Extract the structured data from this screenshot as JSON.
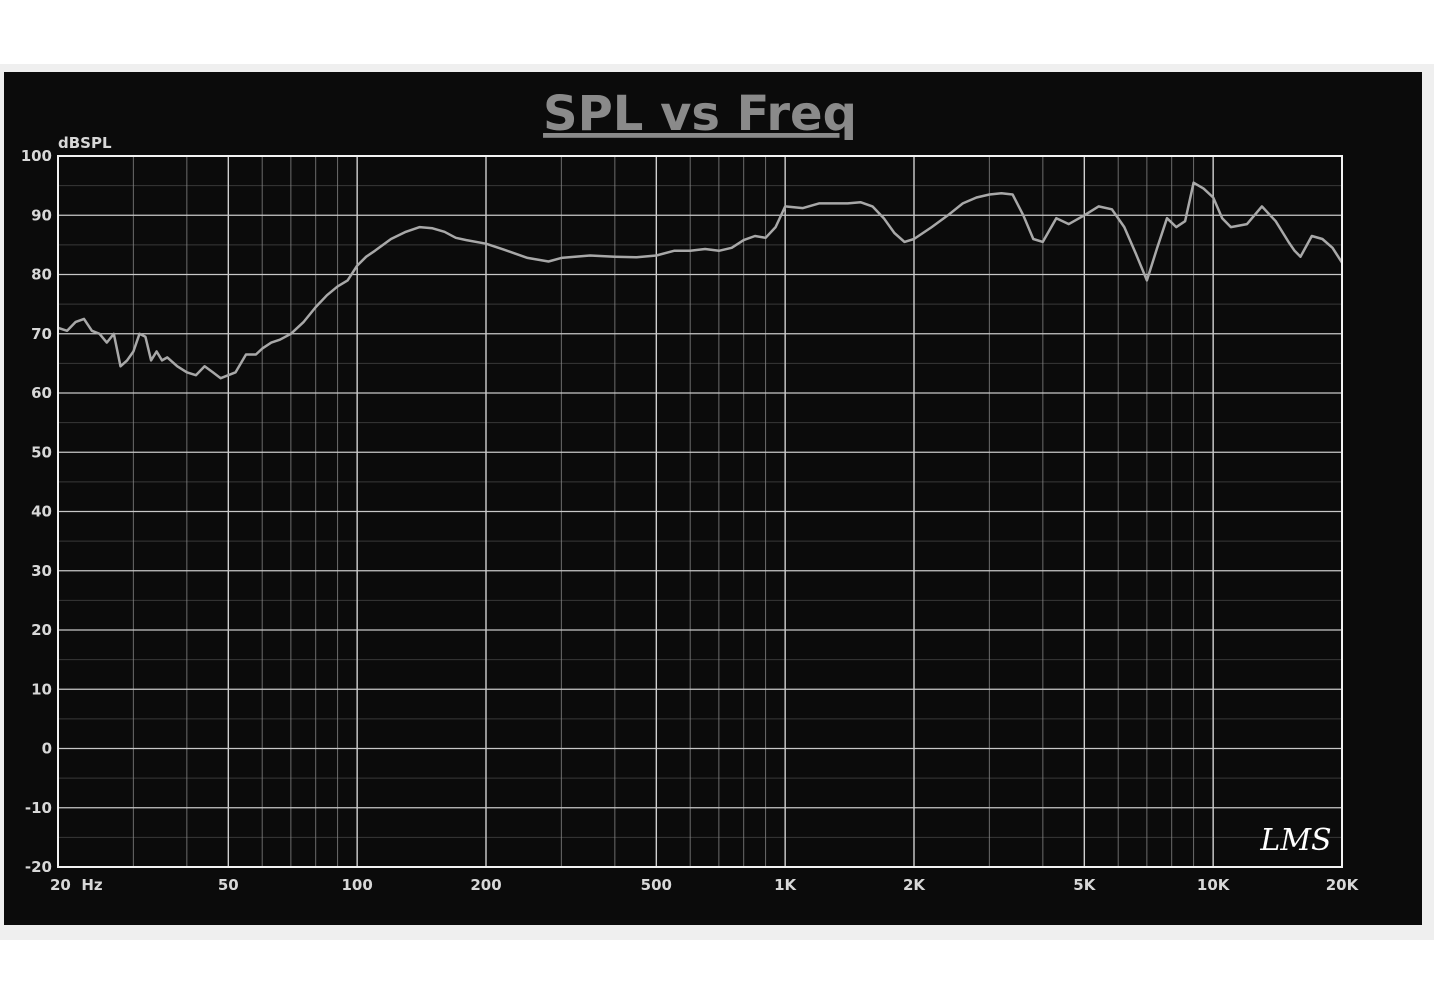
{
  "chart_data": {
    "type": "line",
    "title": "SPL vs Freq",
    "ylabel": "dBSPL",
    "xlabel": "",
    "x_scale": "log",
    "xlim": [
      20,
      20000
    ],
    "ylim": [
      -20,
      100
    ],
    "grid": true,
    "line_color": "#a8a8a8",
    "background_color": "#0b0b0b",
    "grid_color": "#8c8c8c",
    "y_ticks": [
      {
        "value": 100,
        "label": "100"
      },
      {
        "value": 90,
        "label": "90"
      },
      {
        "value": 80,
        "label": "80"
      },
      {
        "value": 70,
        "label": "70"
      },
      {
        "value": 60,
        "label": "60"
      },
      {
        "value": 50,
        "label": "50"
      },
      {
        "value": 40,
        "label": "40"
      },
      {
        "value": 30,
        "label": "30"
      },
      {
        "value": 20,
        "label": "20"
      },
      {
        "value": 10,
        "label": "10"
      },
      {
        "value": 0,
        "label": "0"
      },
      {
        "value": -10,
        "label": "-10"
      },
      {
        "value": -20,
        "label": "-20"
      }
    ],
    "x_ticks": [
      {
        "value": 20,
        "label": "20  Hz"
      },
      {
        "value": 50,
        "label": "50"
      },
      {
        "value": 100,
        "label": "100"
      },
      {
        "value": 200,
        "label": "200"
      },
      {
        "value": 500,
        "label": "500"
      },
      {
        "value": 1000,
        "label": "1K"
      },
      {
        "value": 2000,
        "label": "2K"
      },
      {
        "value": 5000,
        "label": "5K"
      },
      {
        "value": 10000,
        "label": "10K"
      },
      {
        "value": 20000,
        "label": "20K"
      }
    ],
    "series": [
      {
        "x": [
          20,
          21,
          22,
          23,
          24,
          25,
          26,
          27,
          28,
          29,
          30,
          31,
          32,
          33,
          34,
          35,
          36,
          38,
          40,
          42,
          44,
          46,
          48,
          50,
          52,
          55,
          58,
          60,
          63,
          66,
          70,
          75,
          80,
          85,
          90,
          95,
          100,
          105,
          110,
          120,
          130,
          140,
          150,
          160,
          170,
          180,
          200,
          220,
          250,
          280,
          300,
          350,
          400,
          450,
          500,
          550,
          600,
          650,
          700,
          750,
          800,
          850,
          900,
          950,
          1000,
          1100,
          1200,
          1300,
          1400,
          1500,
          1600,
          1700,
          1800,
          1900,
          2000,
          2200,
          2400,
          2600,
          2800,
          3000,
          3200,
          3400,
          3600,
          3800,
          4000,
          4300,
          4600,
          5000,
          5400,
          5800,
          6200,
          6600,
          7000,
          7400,
          7800,
          8200,
          8600,
          9000,
          9500,
          10000,
          10500,
          11000,
          12000,
          13000,
          14000,
          15000,
          15500,
          16000,
          17000,
          18000,
          19000,
          20000
        ],
        "y": [
          71,
          70.5,
          72,
          72.5,
          70.5,
          70,
          68.5,
          70,
          64.5,
          65.5,
          67,
          70,
          69.5,
          65.5,
          67,
          65.5,
          66,
          64.5,
          63.5,
          63,
          64.5,
          63.5,
          62.5,
          63,
          63.5,
          66.5,
          66.5,
          67.5,
          68.5,
          69,
          70,
          72,
          74.5,
          76.5,
          78,
          79,
          81.5,
          83,
          84,
          86,
          87.2,
          88,
          87.8,
          87.2,
          86.2,
          85.8,
          85.2,
          84.2,
          82.8,
          82.2,
          82.8,
          83.2,
          83,
          82.9,
          83.2,
          84,
          84,
          84.3,
          84,
          84.5,
          85.8,
          86.5,
          86.2,
          88,
          91.5,
          91.2,
          92,
          92,
          92,
          92.2,
          91.5,
          89.5,
          87,
          85.5,
          86,
          88,
          90,
          92,
          93,
          93.5,
          93.7,
          93.5,
          90,
          86,
          85.5,
          89.5,
          88.5,
          90,
          91.5,
          91,
          88,
          83.5,
          79,
          84.5,
          89.5,
          88,
          89,
          95.5,
          94.5,
          93,
          89.5,
          88,
          88.5,
          91.5,
          89,
          85.5,
          84,
          83,
          86.5,
          86,
          84.5,
          82
        ]
      }
    ]
  },
  "watermark": "LMS"
}
